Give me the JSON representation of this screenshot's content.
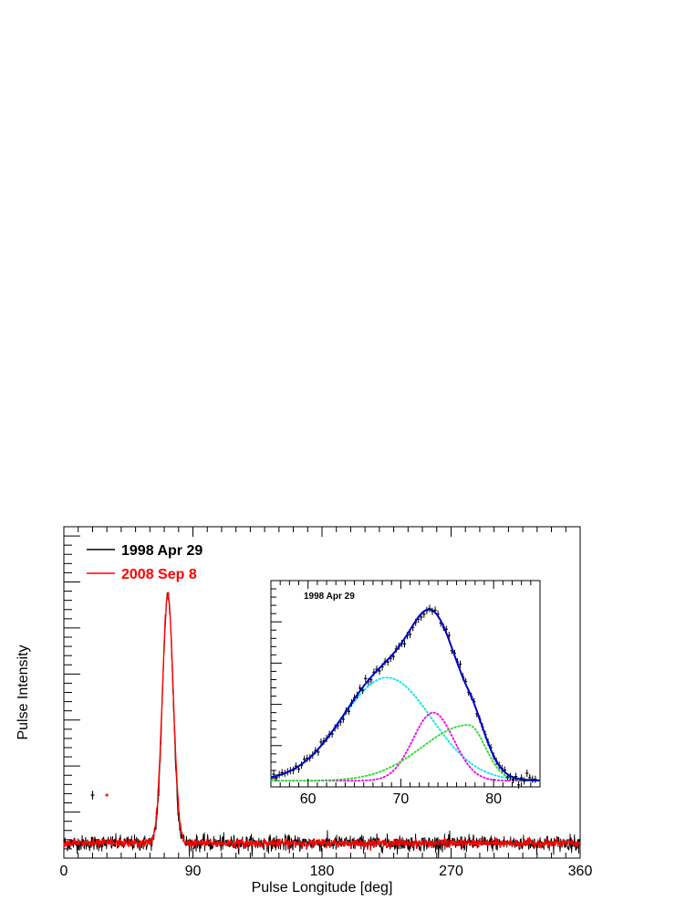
{
  "chart_data": [
    {
      "type": "line",
      "title": "",
      "xlabel": "Pulse Longitude [deg]",
      "ylabel": "Pulse Intensity",
      "xlim": [
        0,
        360
      ],
      "ylim": [
        0,
        1.0
      ],
      "x_ticks": [
        0,
        90,
        180,
        270,
        360
      ],
      "y_tick_labels": "none",
      "grid": false,
      "legend": {
        "placement": "top-left",
        "entries": [
          {
            "name": "1998 Apr 29",
            "color": "#000000"
          },
          {
            "name": "2008 Sep 8",
            "color": "#ff0000"
          }
        ]
      },
      "series": [
        {
          "name": "1998 Apr 29",
          "color": "#000000",
          "profile": {
            "baseline": 0.045,
            "noise_sigma": 0.012,
            "components": [
              {
                "center": 72.5,
                "width": 3.6,
                "amplitude": 0.75
              }
            ]
          },
          "representative_error_bar": {
            "x": 20,
            "y": 0.19,
            "half_height": 0.013
          }
        },
        {
          "name": "2008 Sep 8",
          "color": "#ff0000",
          "profile": {
            "baseline": 0.045,
            "noise_sigma": 0.006,
            "components": [
              {
                "center": 72.5,
                "width": 3.8,
                "amplitude": 0.75
              }
            ]
          },
          "representative_error_bar": {
            "x": 30,
            "y": 0.19,
            "half_height": 0.005
          }
        }
      ]
    },
    {
      "type": "line",
      "title": "1998 Apr 29",
      "xlabel": "",
      "ylabel": "",
      "xlim": [
        56,
        85
      ],
      "ylim": [
        0,
        1.0
      ],
      "x_ticks": [
        60,
        70,
        80
      ],
      "grid": false,
      "data_points": {
        "color": "#000000",
        "x_start": 56.3,
        "x_end": 84.7,
        "step": 0.3
      },
      "series": [
        {
          "name": "",
          "role": "total fit",
          "color": "#0000cc",
          "line": "solid"
        },
        {
          "name": "",
          "role": "component 1",
          "color": "#00e5ee",
          "line": "dotted",
          "center": 68.5,
          "width": 4.8,
          "amplitude": 0.5
        },
        {
          "name": "",
          "role": "component 2",
          "color": "#ee00ee",
          "line": "dotted",
          "center": 73.5,
          "width": 2.2,
          "amplitude": 0.33
        },
        {
          "name": "",
          "role": "component 3",
          "color": "#22dd22",
          "line": "dotted",
          "center": 77.3,
          "width_left": 5.0,
          "width_right": 1.8,
          "amplitude": 0.27
        }
      ],
      "baseline": 0.03
    }
  ]
}
